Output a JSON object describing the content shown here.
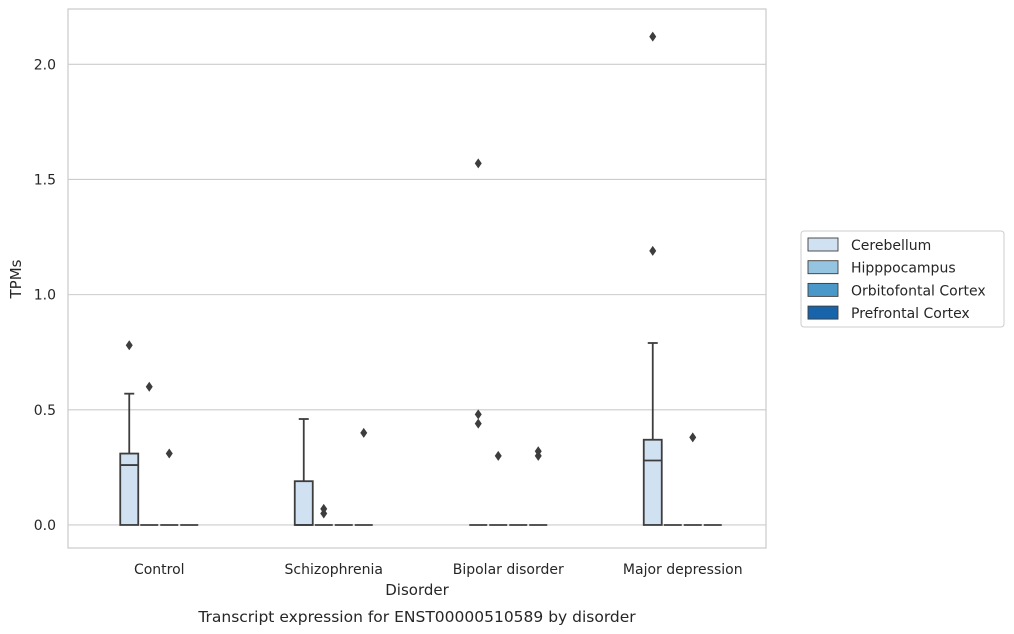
{
  "chart_data": {
    "type": "box",
    "caption": "Transcript expression for ENST00000510589 by disorder",
    "xlabel": "Disorder",
    "ylabel": "TPMs",
    "ylim": [
      -0.1,
      2.24
    ],
    "yticks": [
      "0.0",
      "0.5",
      "1.0",
      "1.5",
      "2.0"
    ],
    "ytick_values": [
      0.0,
      0.5,
      1.0,
      1.5,
      2.0
    ],
    "grid": "horizontal",
    "legend_position": "right",
    "categories": [
      "Control",
      "Schizophrenia",
      "Bipolar disorder",
      "Major depression"
    ],
    "series": [
      {
        "name": "Cerebellum",
        "color": "#d0e1f2",
        "boxes": [
          {
            "q1": 0.0,
            "median": 0.26,
            "q3": 0.31,
            "whislo": 0.0,
            "whishi": 0.57,
            "fliers": [
              0.78
            ]
          },
          {
            "q1": 0.0,
            "median": 0.0,
            "q3": 0.19,
            "whislo": 0.0,
            "whishi": 0.46,
            "fliers": []
          },
          {
            "q1": 0.0,
            "median": 0.0,
            "q3": 0.0,
            "whislo": 0.0,
            "whishi": 0.0,
            "fliers": [
              0.44,
              0.48,
              1.57
            ]
          },
          {
            "q1": 0.0,
            "median": 0.28,
            "q3": 0.37,
            "whislo": 0.0,
            "whishi": 0.79,
            "fliers": [
              1.19,
              2.12
            ]
          }
        ]
      },
      {
        "name": "Hipppocampus",
        "color": "#94c4df",
        "boxes": [
          {
            "q1": 0.0,
            "median": 0.0,
            "q3": 0.0,
            "whislo": 0.0,
            "whishi": 0.0,
            "fliers": [
              0.6
            ]
          },
          {
            "q1": 0.0,
            "median": 0.0,
            "q3": 0.0,
            "whislo": 0.0,
            "whishi": 0.0,
            "fliers": [
              0.05,
              0.07
            ]
          },
          {
            "q1": 0.0,
            "median": 0.0,
            "q3": 0.0,
            "whislo": 0.0,
            "whishi": 0.0,
            "fliers": [
              0.3
            ]
          },
          {
            "q1": 0.0,
            "median": 0.0,
            "q3": 0.0,
            "whislo": 0.0,
            "whishi": 0.0,
            "fliers": []
          }
        ]
      },
      {
        "name": "Orbitofontal Cortex",
        "color": "#4a98c9",
        "boxes": [
          {
            "q1": 0.0,
            "median": 0.0,
            "q3": 0.0,
            "whislo": 0.0,
            "whishi": 0.0,
            "fliers": [
              0.31
            ]
          },
          {
            "q1": 0.0,
            "median": 0.0,
            "q3": 0.0,
            "whislo": 0.0,
            "whishi": 0.0,
            "fliers": []
          },
          {
            "q1": 0.0,
            "median": 0.0,
            "q3": 0.0,
            "whislo": 0.0,
            "whishi": 0.0,
            "fliers": []
          },
          {
            "q1": 0.0,
            "median": 0.0,
            "q3": 0.0,
            "whislo": 0.0,
            "whishi": 0.0,
            "fliers": [
              0.38
            ]
          }
        ]
      },
      {
        "name": "Prefrontal Cortex",
        "color": "#1764ab",
        "boxes": [
          {
            "q1": 0.0,
            "median": 0.0,
            "q3": 0.0,
            "whislo": 0.0,
            "whishi": 0.0,
            "fliers": []
          },
          {
            "q1": 0.0,
            "median": 0.0,
            "q3": 0.0,
            "whislo": 0.0,
            "whishi": 0.0,
            "fliers": [
              0.4
            ]
          },
          {
            "q1": 0.0,
            "median": 0.0,
            "q3": 0.0,
            "whislo": 0.0,
            "whishi": 0.0,
            "fliers": [
              0.3,
              0.32
            ]
          },
          {
            "q1": 0.0,
            "median": 0.0,
            "q3": 0.0,
            "whislo": 0.0,
            "whishi": 0.0,
            "fliers": []
          }
        ]
      }
    ]
  }
}
